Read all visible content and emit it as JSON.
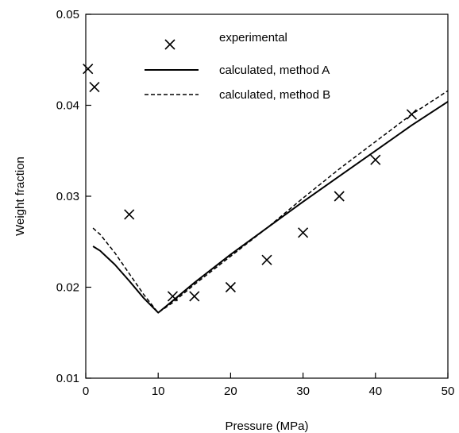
{
  "chart_data": {
    "type": "scatter",
    "title": "",
    "xlabel": "Pressure (MPa)",
    "ylabel": "Weight fraction",
    "xlim": [
      0,
      50
    ],
    "ylim": [
      0.01,
      0.05
    ],
    "xticks": [
      0,
      10,
      20,
      30,
      40,
      50
    ],
    "yticks": [
      0.01,
      0.02,
      0.03,
      0.04,
      0.05
    ],
    "xtick_labels": [
      "0",
      "10",
      "20",
      "30",
      "40",
      "50"
    ],
    "ytick_labels": [
      "0.01",
      "0.02",
      "0.03",
      "0.04",
      "0.05"
    ],
    "grid": false,
    "legend_position": "top-center",
    "series": [
      {
        "name": "experimental",
        "style": "markers-x",
        "x": [
          0.3,
          1.2,
          6,
          12,
          15,
          20,
          25,
          30,
          35,
          40,
          45
        ],
        "y": [
          0.044,
          0.042,
          0.028,
          0.019,
          0.019,
          0.02,
          0.023,
          0.026,
          0.03,
          0.034,
          0.039
        ]
      },
      {
        "name": "calculated, method A",
        "style": "solid",
        "x": [
          1,
          2,
          4,
          6,
          8,
          10,
          12,
          15,
          20,
          25,
          30,
          35,
          40,
          45,
          50
        ],
        "y": [
          0.0245,
          0.024,
          0.0225,
          0.0207,
          0.0188,
          0.0172,
          0.0185,
          0.0205,
          0.0236,
          0.0265,
          0.0294,
          0.0322,
          0.035,
          0.0378,
          0.0404
        ]
      },
      {
        "name": "calculated, method B",
        "style": "dashed",
        "x": [
          1,
          2,
          4,
          6,
          8,
          10,
          12,
          15,
          20,
          25,
          30,
          35,
          40,
          45,
          50
        ],
        "y": [
          0.0265,
          0.0258,
          0.0238,
          0.0215,
          0.0192,
          0.0172,
          0.0183,
          0.0203,
          0.0234,
          0.0265,
          0.0298,
          0.033,
          0.036,
          0.039,
          0.0416
        ]
      }
    ]
  }
}
